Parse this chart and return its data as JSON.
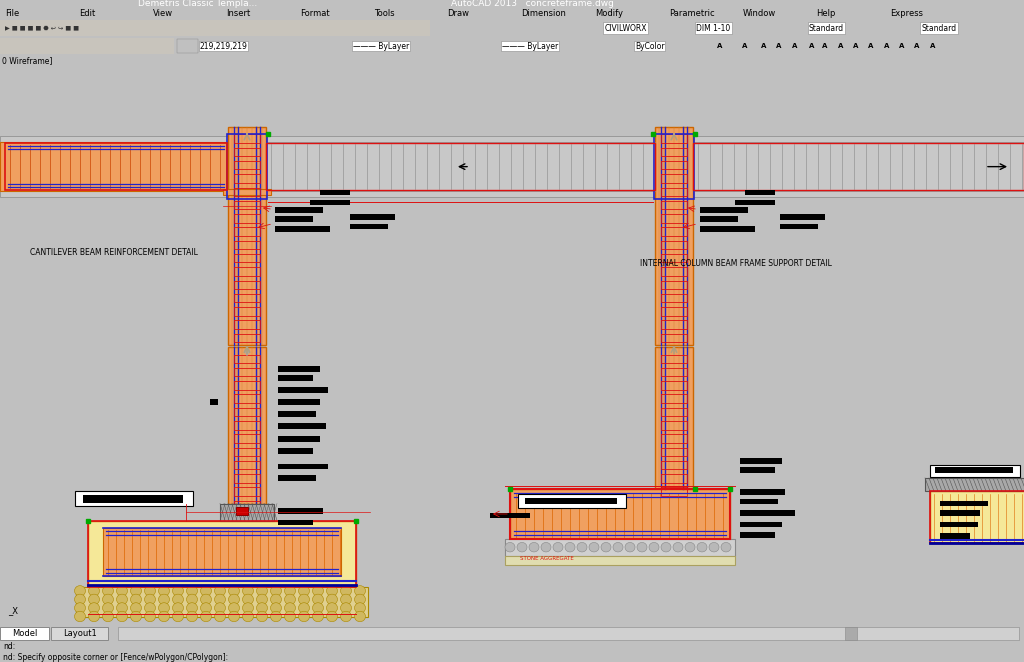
{
  "bg_color": "#c0c0c0",
  "title_bar_color": "#1a1a3a",
  "title_bar_text": "Demetris Classic Templa...",
  "autocad_title": "AutoCAD 2013   concreteframe.dwg",
  "menu_bg": "#d4d0c8",
  "toolbar_bg": "#d4d0c8",
  "canvas_bg": "#ffffff",
  "beam_fill": "#f0a060",
  "beam_fill2": "#f5b070",
  "slab_fill": "#c8c8c8",
  "col_fill": "#f0a060",
  "yellow_fill": "#f5e898",
  "rebar_blue": "#2222cc",
  "rebar_red": "#dd1111",
  "red_border": "#dd1111",
  "orange_line": "#cc6600",
  "dim_red": "#cc0000",
  "black": "#000000",
  "gray_hatch": "#888888",
  "green_dot": "#00aa00",
  "label1": "CANTILEVER BEAM REINFORCEMENT DETAIL",
  "label2": "INTERNAL COLUMN BEAM FRAME SUPPORT DETAIL",
  "status_text": "nd: Specify opposite corner or [Fence/wPolygon/CPolygon]:",
  "toolbar_items": [
    "CIVILWORX",
    "DIM 1-10",
    "Standard",
    "Standard"
  ],
  "menu_items": [
    "File",
    "Edit",
    "View",
    "Insert",
    "Format",
    "Tools",
    "Draw",
    "Dimension",
    "Modify",
    "Parametric",
    "Window",
    "Help",
    "Express"
  ],
  "layer_text": "219,219,219",
  "bylayer1": "ByLayer",
  "bylayer2": "ByLayer",
  "bycolor": "ByColor",
  "wireframe": "0 Wireframe]",
  "tab_model": "Model",
  "tab_layout": "Layout1",
  "cursor_x": "_X",
  "note1": "nd:",
  "note2": "nd: Specify opposite corner or [Fence/wPolygon/CPolygon]:"
}
